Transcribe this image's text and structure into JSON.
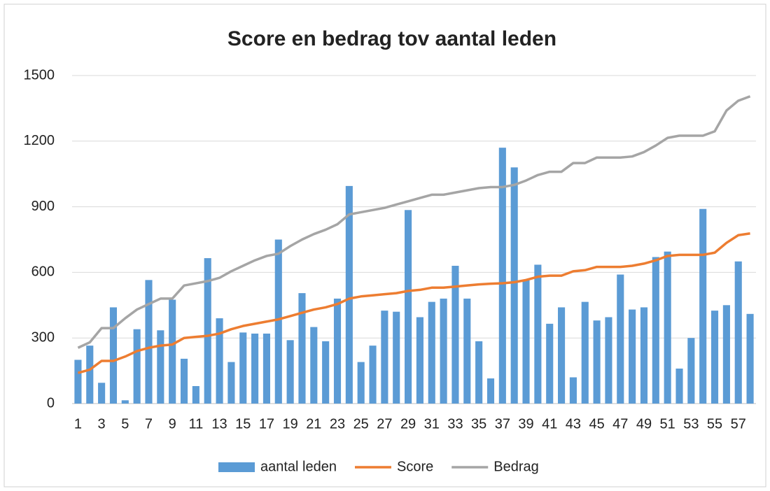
{
  "chart_data": {
    "type": "combo",
    "title": "Score en bedrag tov aantal leden",
    "categories": [
      1,
      null,
      3,
      null,
      5,
      null,
      7,
      null,
      9,
      null,
      11,
      null,
      13,
      null,
      15,
      null,
      17,
      null,
      19,
      null,
      21,
      null,
      23,
      null,
      25,
      null,
      27,
      null,
      29,
      null,
      31,
      null,
      33,
      null,
      35,
      null,
      37,
      null,
      39,
      null,
      41,
      null,
      43,
      null,
      45,
      null,
      47,
      null,
      49,
      null,
      51,
      null,
      53,
      null,
      55,
      null,
      57,
      null
    ],
    "series": [
      {
        "name": "aantal leden",
        "type": "bar",
        "color": "#5b9bd5",
        "values": [
          200,
          265,
          95,
          440,
          15,
          340,
          565,
          335,
          475,
          205,
          80,
          665,
          390,
          190,
          325,
          320,
          320,
          750,
          290,
          505,
          350,
          285,
          480,
          995,
          190,
          265,
          425,
          420,
          885,
          395,
          465,
          480,
          630,
          480,
          285,
          115,
          1170,
          1080,
          565,
          635,
          365,
          440,
          120,
          465,
          380,
          395,
          590,
          430,
          440,
          670,
          695,
          160,
          300,
          890,
          425,
          450,
          650,
          410
        ]
      },
      {
        "name": "Score",
        "type": "line",
        "color": "#ed7d31",
        "values": [
          140,
          155,
          195,
          195,
          215,
          240,
          255,
          265,
          270,
          300,
          305,
          310,
          320,
          340,
          355,
          365,
          375,
          385,
          400,
          415,
          430,
          440,
          455,
          480,
          490,
          495,
          500,
          505,
          515,
          520,
          530,
          530,
          535,
          540,
          545,
          548,
          550,
          555,
          565,
          580,
          585,
          585,
          605,
          610,
          625,
          625,
          625,
          630,
          640,
          655,
          675,
          680,
          680,
          680,
          690,
          735,
          770,
          778
        ]
      },
      {
        "name": "Bedrag",
        "type": "line",
        "color": "#a5a5a5",
        "values": [
          255,
          280,
          345,
          345,
          390,
          430,
          455,
          480,
          480,
          540,
          550,
          560,
          575,
          605,
          630,
          655,
          675,
          685,
          720,
          750,
          775,
          795,
          820,
          865,
          875,
          885,
          895,
          910,
          925,
          940,
          955,
          955,
          965,
          975,
          985,
          990,
          990,
          1000,
          1020,
          1045,
          1060,
          1060,
          1100,
          1100,
          1125,
          1125,
          1125,
          1130,
          1150,
          1180,
          1215,
          1225,
          1225,
          1225,
          1245,
          1340,
          1385,
          1405
        ]
      }
    ],
    "ylim": [
      0,
      1500
    ],
    "yticks": [
      0,
      300,
      600,
      900,
      1200,
      1500
    ],
    "grid": true,
    "legend": "bottom"
  }
}
